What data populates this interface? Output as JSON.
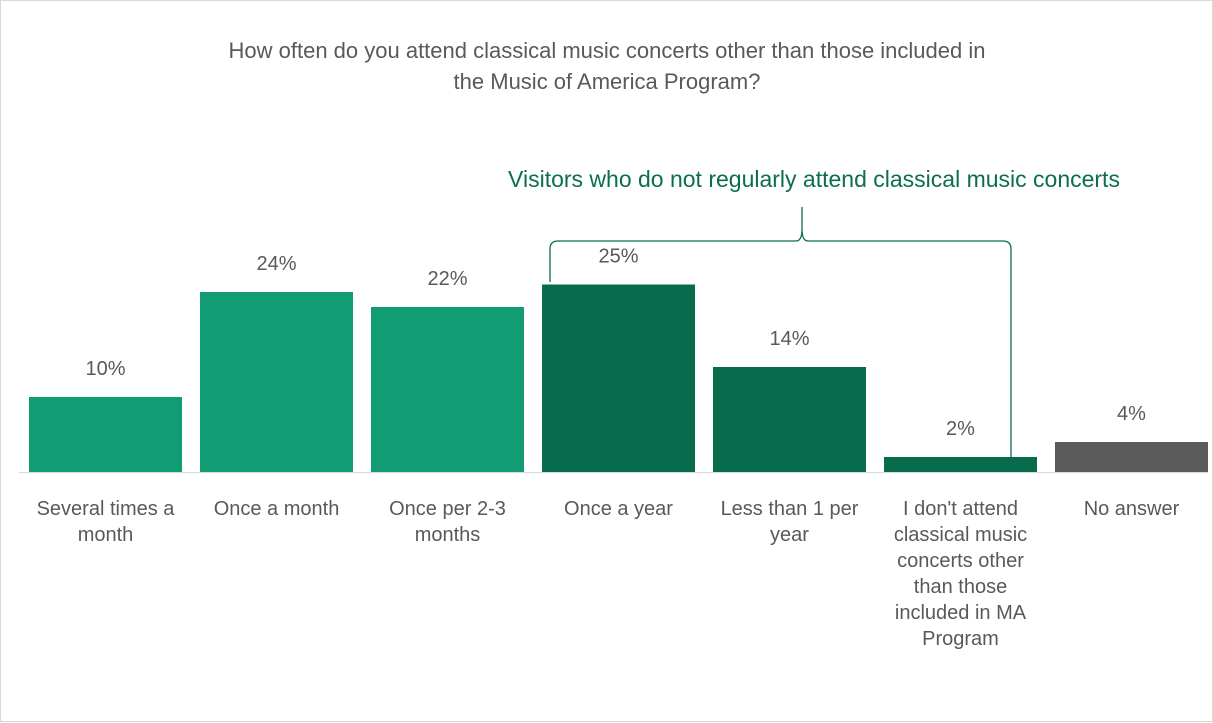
{
  "chart_data": {
    "type": "bar",
    "title": "How often do you attend classical music concerts other than those included in the Music of America Program?",
    "xlabel": "",
    "ylabel": "",
    "ylim": [
      0,
      28
    ],
    "grid": false,
    "legend": "none",
    "categories": [
      "Several times a month",
      "Once a month",
      "Once per 2-3 months",
      "Once a year",
      "Less than 1 per year",
      "I don't attend classical music concerts other than those included in MA Program",
      "No answer"
    ],
    "values": [
      10,
      24,
      22,
      25,
      14,
      2,
      4
    ],
    "value_labels": [
      "10%",
      "24%",
      "22%",
      "25%",
      "14%",
      "2%",
      "4%"
    ],
    "bar_colors": [
      "#119c74",
      "#119c74",
      "#119c74",
      "#086b4e",
      "#086b4e",
      "#086b4e",
      "#5b5b5b"
    ],
    "annotation": {
      "text": "Visitors who do not regularly attend classical music concerts",
      "color": "#0b6e4f",
      "bracket_from": 3,
      "bracket_to": 5
    },
    "text_color": "#595959"
  }
}
